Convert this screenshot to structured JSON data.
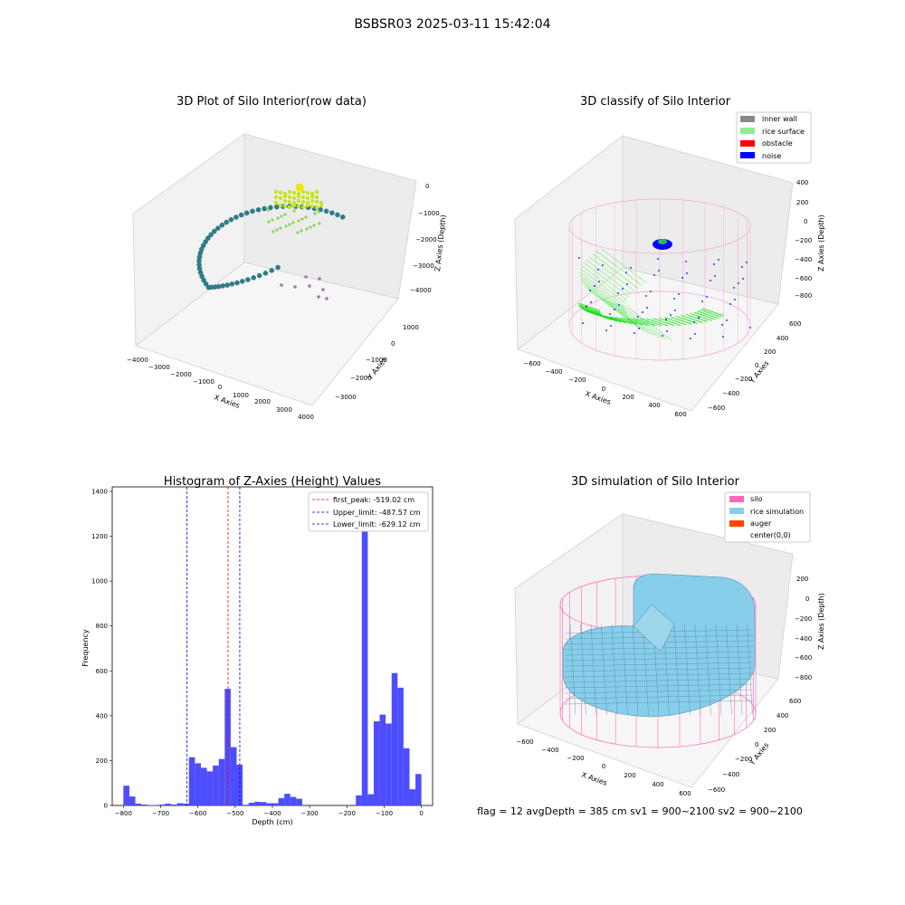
{
  "figure_title": "BSBSR03 2025-03-11 15:42:04",
  "status_line": "flag = 12   avgDepth = 385 cm  sv1 = 900~2100  sv2 = 900~2100",
  "colors": {
    "raw_wall": "#2e7d8c",
    "raw_surface": "#c6e31e",
    "raw_scatter": "#8fd35a",
    "raw_obstacle": "#a678a8",
    "inner_wall": "#888888",
    "rice_surface": "#90ee90",
    "obstacle": "#ff0000",
    "noise": "#0000ff",
    "silo": "#ff69b4",
    "rice_simulation": "#87ceeb",
    "auger": "#ff4500",
    "hist_bar": "#4d4dff"
  },
  "chart_data": [
    {
      "type": "scatter",
      "title": "3D Plot of Silo Interior(row data)",
      "xlabel": "X Axies",
      "ylabel": "Y Axies",
      "zlabel": "Z Axies (Depth)",
      "x_ticks": [
        "−4000",
        "−3000",
        "−2000",
        "−1000",
        "0",
        "1000",
        "2000",
        "3000",
        "4000"
      ],
      "y_ticks": [
        "1000",
        "0",
        "−1000",
        "−2000",
        "−3000"
      ],
      "z_ticks": [
        "0",
        "−1000",
        "−2000",
        "−3000",
        "−4000"
      ]
    },
    {
      "type": "scatter",
      "title": "3D classify of Silo Interior",
      "xlabel": "X Axies",
      "ylabel": "Y Axies",
      "zlabel": "Z Axies (Depth)",
      "x_ticks": [
        "−600",
        "−400",
        "−200",
        "0",
        "200",
        "400",
        "600"
      ],
      "y_ticks": [
        "600",
        "400",
        "200",
        "0",
        "−200",
        "−400",
        "−600"
      ],
      "z_ticks": [
        "400",
        "200",
        "0",
        "−200",
        "−400",
        "−600",
        "−800"
      ],
      "legend": [
        "inner wall",
        "rice surface",
        "obstacle",
        "noise"
      ],
      "legend_position": "top-right"
    },
    {
      "type": "bar",
      "title": "Histogram of Z-Axies (Height) Values",
      "xlabel": "Depth (cm)",
      "ylabel": "Frequency",
      "xlim": [
        -830,
        30
      ],
      "ylim": [
        0,
        1420
      ],
      "x_ticks": [
        -800,
        -700,
        -600,
        -500,
        -400,
        -300,
        -200,
        -100,
        0
      ],
      "y_ticks": [
        0,
        200,
        400,
        600,
        800,
        1000,
        1200,
        1400
      ],
      "bin_width": 16,
      "bins": [
        {
          "x": -792,
          "y": 88
        },
        {
          "x": -776,
          "y": 40
        },
        {
          "x": -760,
          "y": 8
        },
        {
          "x": -744,
          "y": 4
        },
        {
          "x": -728,
          "y": 2
        },
        {
          "x": -712,
          "y": 2
        },
        {
          "x": -696,
          "y": 4
        },
        {
          "x": -680,
          "y": 8
        },
        {
          "x": -664,
          "y": 4
        },
        {
          "x": -648,
          "y": 10
        },
        {
          "x": -632,
          "y": 8
        },
        {
          "x": -616,
          "y": 215
        },
        {
          "x": -600,
          "y": 188
        },
        {
          "x": -584,
          "y": 168
        },
        {
          "x": -568,
          "y": 152
        },
        {
          "x": -552,
          "y": 178
        },
        {
          "x": -536,
          "y": 207
        },
        {
          "x": -520,
          "y": 520
        },
        {
          "x": -504,
          "y": 260
        },
        {
          "x": -488,
          "y": 182
        },
        {
          "x": -472,
          "y": 3
        },
        {
          "x": -456,
          "y": 12
        },
        {
          "x": -440,
          "y": 16
        },
        {
          "x": -424,
          "y": 15
        },
        {
          "x": -408,
          "y": 10
        },
        {
          "x": -392,
          "y": 10
        },
        {
          "x": -376,
          "y": 33
        },
        {
          "x": -360,
          "y": 52
        },
        {
          "x": -344,
          "y": 38
        },
        {
          "x": -328,
          "y": 30
        },
        {
          "x": -168,
          "y": 45
        },
        {
          "x": -152,
          "y": 1355
        },
        {
          "x": -136,
          "y": 50
        },
        {
          "x": -120,
          "y": 375
        },
        {
          "x": -104,
          "y": 405
        },
        {
          "x": -88,
          "y": 365
        },
        {
          "x": -72,
          "y": 590
        },
        {
          "x": -56,
          "y": 525
        },
        {
          "x": -40,
          "y": 255
        },
        {
          "x": -24,
          "y": 72
        },
        {
          "x": -8,
          "y": 140
        }
      ],
      "vlines": [
        {
          "label": "first_peak: -519.02 cm",
          "x": -519.02,
          "color": "#ff0000"
        },
        {
          "label": "Upper_limit: -487.57 cm",
          "x": -487.57,
          "color": "#0000cc"
        },
        {
          "label": "Lower_limit: -629.12 cm",
          "x": -629.12,
          "color": "#0000cc"
        }
      ],
      "legend_position": "top-right"
    },
    {
      "type": "area",
      "title": "3D simulation of Silo Interior",
      "xlabel": "X Axies",
      "ylabel": "Y Axies",
      "zlabel": "Z Axies (Depth)",
      "x_ticks": [
        "−600",
        "−400",
        "−200",
        "0",
        "200",
        "400",
        "600"
      ],
      "y_ticks": [
        "600",
        "400",
        "200",
        "0",
        "−200",
        "−400",
        "−600"
      ],
      "z_ticks": [
        "200",
        "0",
        "−200",
        "−400",
        "−600",
        "−800"
      ],
      "legend": [
        "silo",
        "rice simulation",
        "auger",
        "center(0,0)"
      ],
      "legend_position": "top-right"
    }
  ]
}
